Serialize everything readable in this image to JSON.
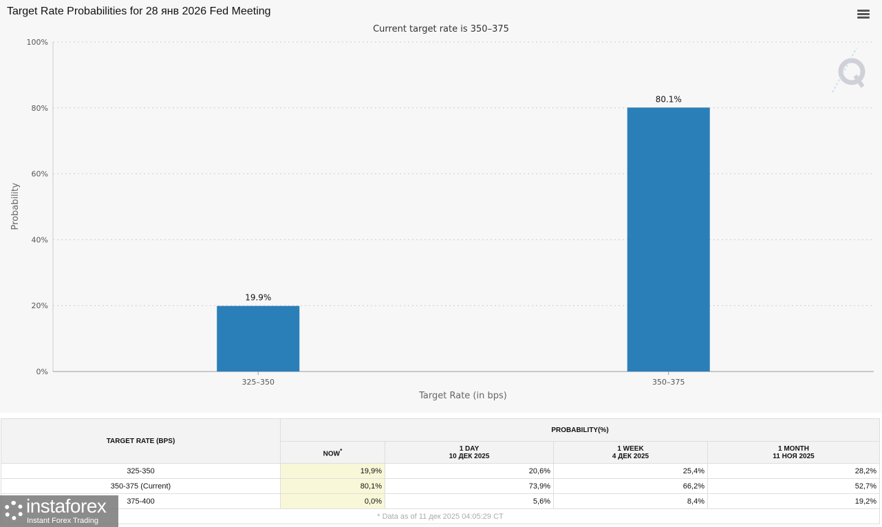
{
  "header": {
    "title": "Target Rate Probabilities for 28 янв 2026 Fed Meeting",
    "menu_icon": "hamburger-icon"
  },
  "chart_data": {
    "type": "bar",
    "subtitle": "Current target rate is 350–375",
    "categories": [
      "325–350",
      "350–375"
    ],
    "values": [
      19.9,
      80.1
    ],
    "data_labels": [
      "19.9%",
      "80.1%"
    ],
    "xlabel": "Target Rate (in bps)",
    "ylabel": "Probability",
    "ylim": [
      0,
      100
    ],
    "yticks": [
      "0%",
      "20%",
      "40%",
      "60%",
      "80%",
      "100%"
    ],
    "grid": true,
    "bar_color": "#2a7fb8"
  },
  "table": {
    "header_rate": "TARGET RATE (BPS)",
    "header_prob": "PROBABILITY(%)",
    "cols": [
      {
        "l1": "NOW",
        "l2": ""
      },
      {
        "l1": "1 DAY",
        "l2": "10 ДЕК 2025"
      },
      {
        "l1": "1 WEEK",
        "l2": "4 ДЕК 2025"
      },
      {
        "l1": "1 MONTH",
        "l2": "11 НОЯ 2025"
      }
    ],
    "now_marker": "*",
    "rows": [
      {
        "rate": "325-350",
        "v": [
          "19,9%",
          "20,6%",
          "25,4%",
          "28,2%"
        ]
      },
      {
        "rate": "350-375 (Current)",
        "v": [
          "80,1%",
          "73,9%",
          "66,2%",
          "52,7%"
        ]
      },
      {
        "rate": "375-400",
        "v": [
          "0,0%",
          "5,6%",
          "8,4%",
          "19,2%"
        ]
      }
    ],
    "footnote": "* Data as of 11 дек 2025 04:05:29 CT"
  },
  "watermark": {
    "brand": "instaforex",
    "tagline": "Instant Forex Trading"
  }
}
